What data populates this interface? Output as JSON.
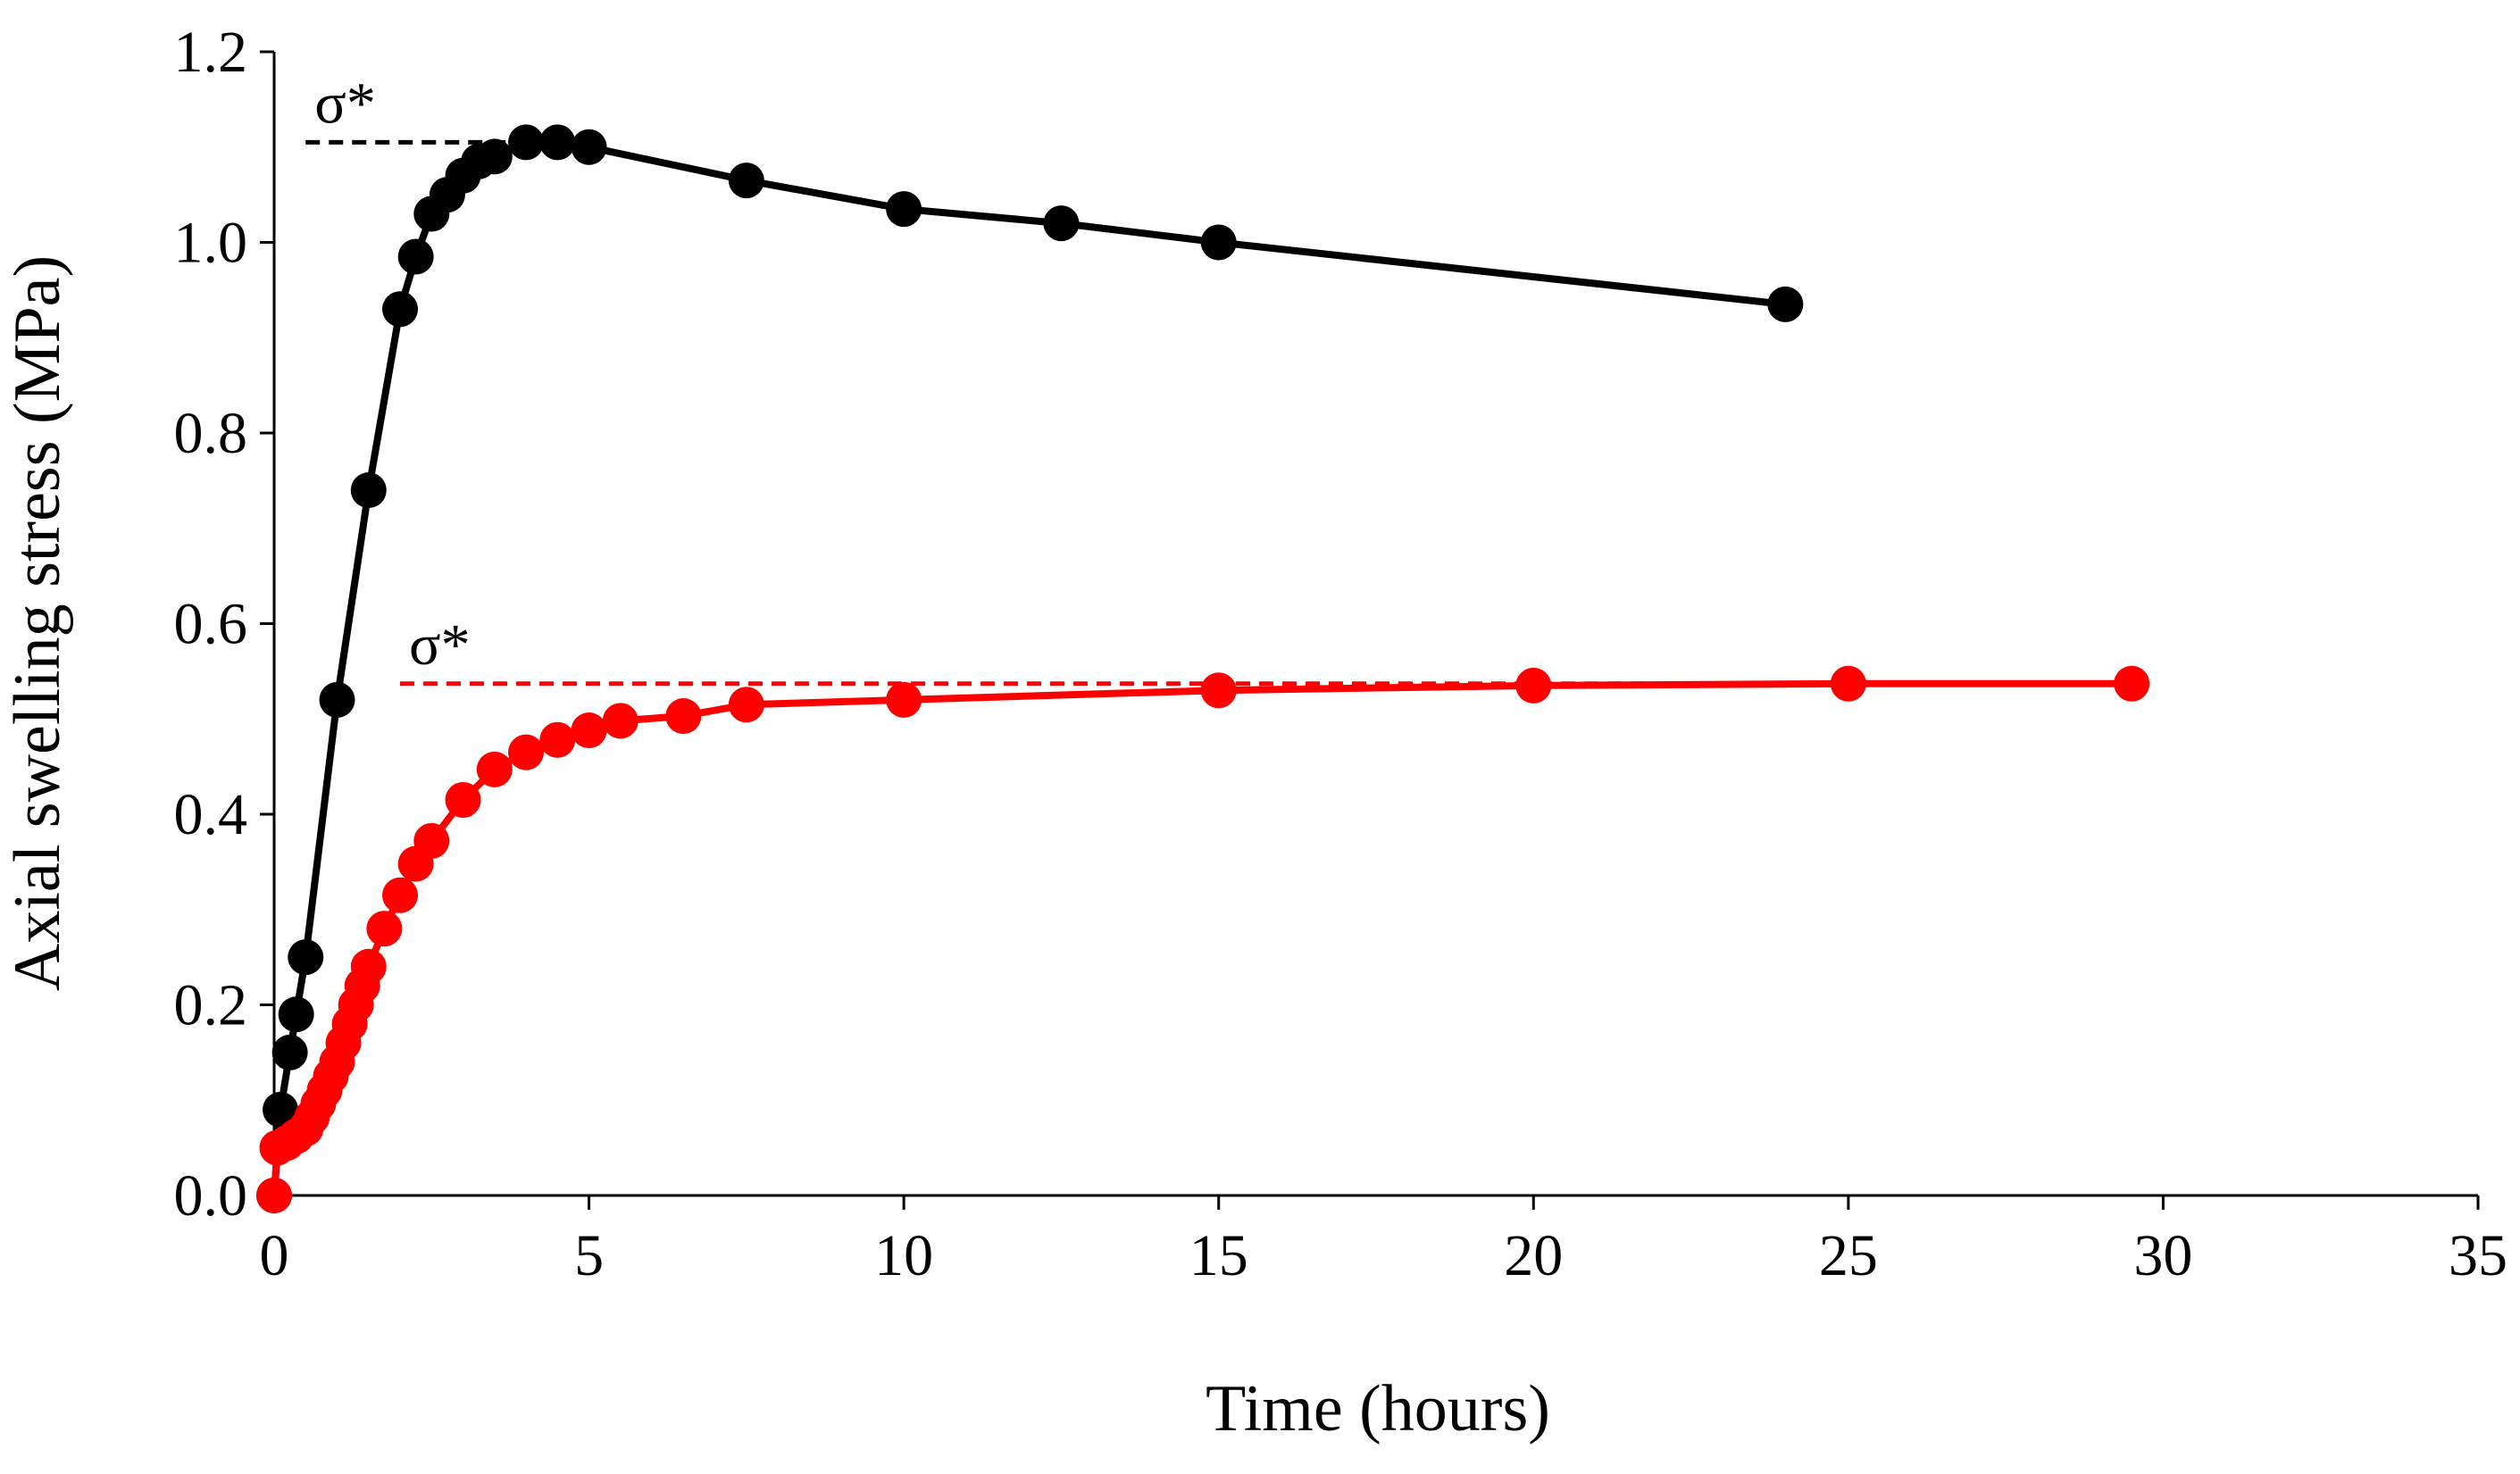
{
  "chart_data": {
    "type": "line",
    "title": "",
    "xlabel": "Time (hours)",
    "ylabel": "Axial swelling stress (MPa)",
    "xlim": [
      0,
      35
    ],
    "ylim": [
      0,
      1.2
    ],
    "xticks": [
      0,
      5,
      10,
      15,
      20,
      25,
      30,
      35
    ],
    "yticks": [
      0,
      0.2,
      0.4,
      0.6,
      0.8,
      1.0,
      1.2
    ],
    "xtick_labels": [
      "0",
      "5",
      "10",
      "15",
      "20",
      "25",
      "30",
      "35"
    ],
    "ytick_labels": [
      "0.0",
      "0.2",
      "0.4",
      "0.6",
      "0.8",
      "1.0",
      "1.2"
    ],
    "grid": false,
    "series": [
      {
        "name": "series-black",
        "color": "#000000",
        "x": [
          0,
          0.1,
          0.25,
          0.35,
          0.5,
          1.0,
          1.5,
          2.0,
          2.25,
          2.5,
          2.75,
          3.0,
          3.25,
          3.5,
          4.0,
          4.5,
          5.0,
          7.5,
          10,
          12.5,
          15,
          24
        ],
        "y": [
          0,
          0.09,
          0.15,
          0.19,
          0.25,
          0.52,
          0.74,
          0.93,
          0.985,
          1.03,
          1.05,
          1.07,
          1.085,
          1.09,
          1.105,
          1.105,
          1.1,
          1.065,
          1.035,
          1.02,
          1.0,
          0.935
        ]
      },
      {
        "name": "series-red",
        "color": "#ff0000",
        "x": [
          0,
          0.05,
          0.2,
          0.35,
          0.5,
          0.6,
          0.7,
          0.8,
          0.9,
          1.0,
          1.1,
          1.2,
          1.3,
          1.4,
          1.5,
          1.75,
          2.0,
          2.25,
          2.5,
          3.0,
          3.5,
          4.0,
          4.5,
          5.0,
          5.5,
          6.5,
          7.5,
          10,
          15,
          20,
          25,
          29.5
        ],
        "y": [
          0,
          0.05,
          0.055,
          0.062,
          0.07,
          0.082,
          0.096,
          0.11,
          0.125,
          0.14,
          0.16,
          0.18,
          0.2,
          0.22,
          0.24,
          0.28,
          0.315,
          0.348,
          0.372,
          0.415,
          0.447,
          0.465,
          0.478,
          0.488,
          0.498,
          0.503,
          0.515,
          0.52,
          0.53,
          0.535,
          0.537,
          0.537
        ]
      }
    ],
    "reference_lines": [
      {
        "name": "sigma-star-black",
        "label": "σ*",
        "y": 1.105,
        "x_start": 0.5,
        "x_end": 3.75,
        "color": "#000000"
      },
      {
        "name": "sigma-star-red",
        "label": "σ*",
        "y": 0.537,
        "x_start": 2.0,
        "x_end": 29.5,
        "color": "#ff0000"
      }
    ]
  }
}
